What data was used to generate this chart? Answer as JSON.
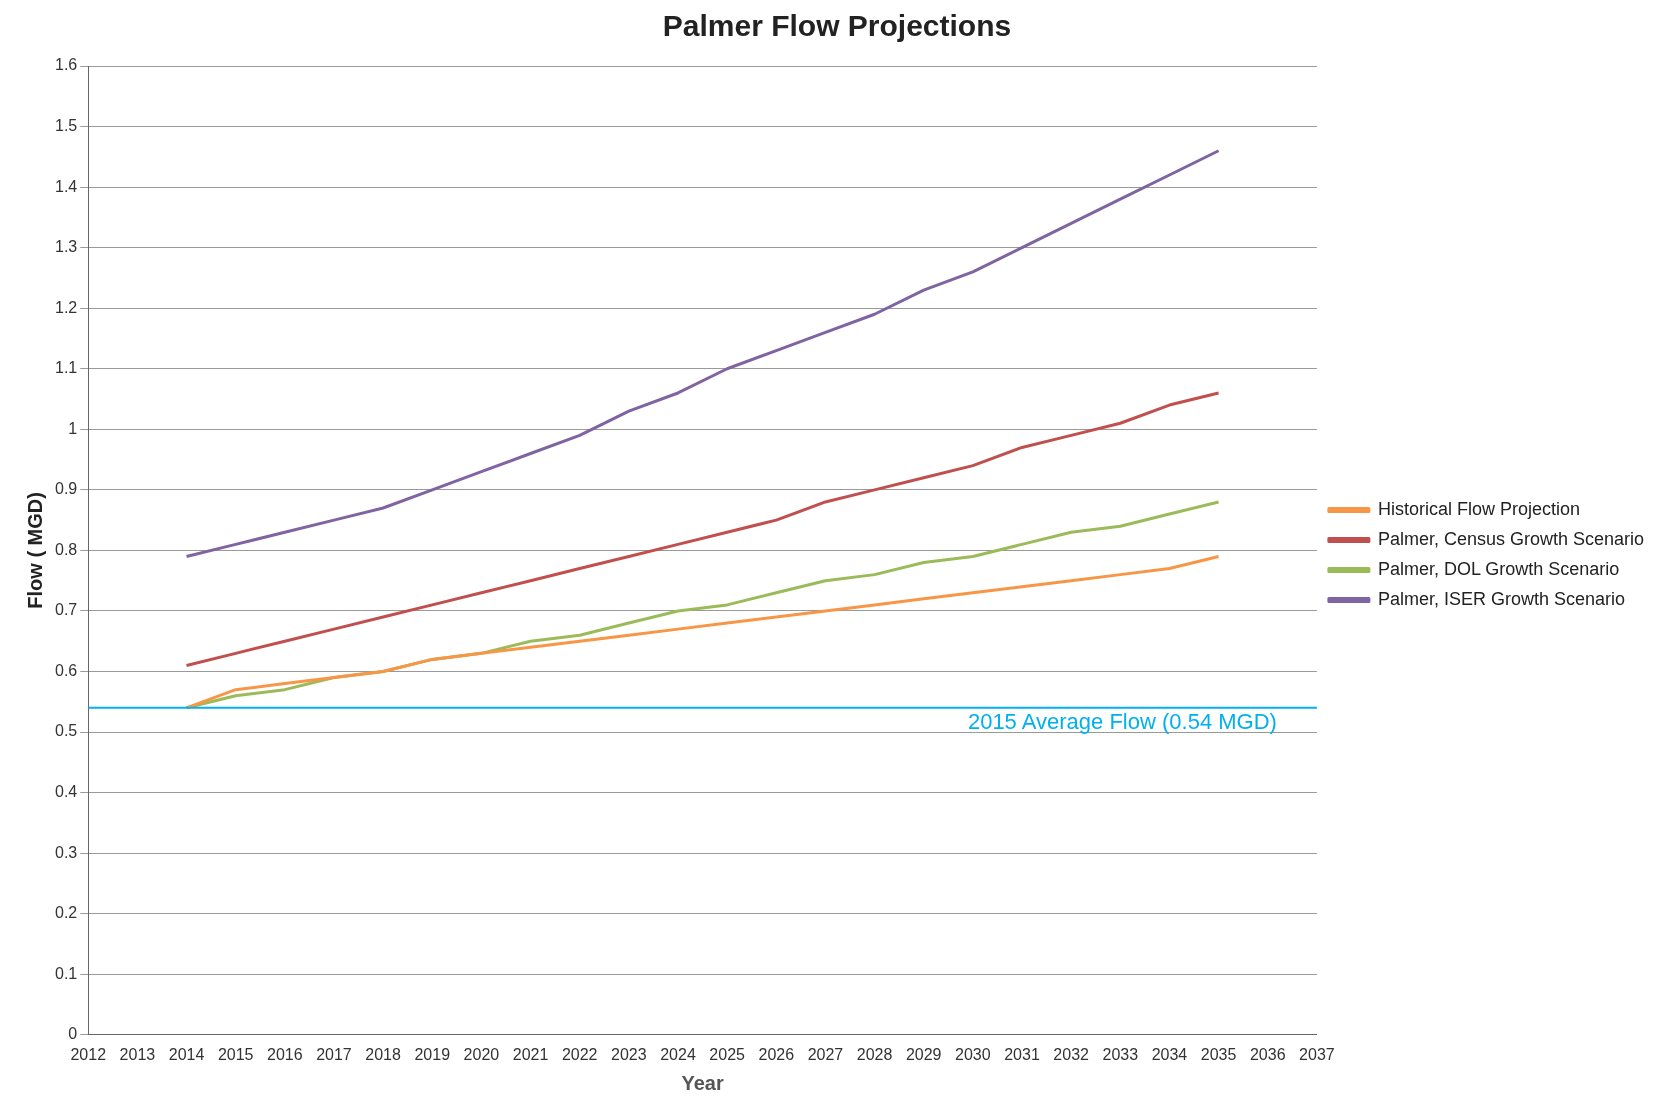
{
  "chart_data": {
    "type": "line",
    "title": "Palmer Flow Projections",
    "xlabel": "Year",
    "ylabel": "Flow ( MGD)",
    "x": [
      2014,
      2015,
      2016,
      2017,
      2018,
      2019,
      2020,
      2021,
      2022,
      2023,
      2024,
      2025,
      2026,
      2027,
      2028,
      2029,
      2030,
      2031,
      2032,
      2033,
      2034,
      2035
    ],
    "series": [
      {
        "name": "Historical Flow Projection",
        "color": "#f79646",
        "values": [
          0.54,
          0.57,
          0.58,
          0.59,
          0.6,
          0.62,
          0.63,
          0.64,
          0.65,
          0.66,
          0.67,
          0.68,
          0.69,
          0.7,
          0.71,
          0.72,
          0.73,
          0.74,
          0.75,
          0.76,
          0.77,
          0.79
        ]
      },
      {
        "name": "Palmer, Census Growth Scenario",
        "color": "#c0504d",
        "values": [
          0.61,
          0.63,
          0.65,
          0.67,
          0.69,
          0.71,
          0.73,
          0.75,
          0.77,
          0.79,
          0.81,
          0.83,
          0.85,
          0.88,
          0.9,
          0.92,
          0.94,
          0.97,
          0.99,
          1.01,
          1.04,
          1.06
        ]
      },
      {
        "name": "Palmer, DOL Growth Scenario",
        "color": "#9bbb59",
        "values": [
          0.54,
          0.56,
          0.57,
          0.59,
          0.6,
          0.62,
          0.63,
          0.65,
          0.66,
          0.68,
          0.7,
          0.71,
          0.73,
          0.75,
          0.76,
          0.78,
          0.79,
          0.81,
          0.83,
          0.84,
          0.86,
          0.88
        ]
      },
      {
        "name": "Palmer, ISER Growth Scenario",
        "color": "#8064a2",
        "values": [
          0.79,
          0.81,
          0.83,
          0.85,
          0.87,
          0.9,
          0.93,
          0.96,
          0.99,
          1.03,
          1.06,
          1.1,
          1.13,
          1.16,
          1.19,
          1.23,
          1.26,
          1.3,
          1.34,
          1.38,
          1.42,
          1.46
        ]
      }
    ],
    "xlim": [
      2012,
      2037
    ],
    "xticks": [
      2012,
      2013,
      2014,
      2015,
      2016,
      2017,
      2018,
      2019,
      2020,
      2021,
      2022,
      2023,
      2024,
      2025,
      2026,
      2027,
      2028,
      2029,
      2030,
      2031,
      2032,
      2033,
      2034,
      2035,
      2036,
      2037
    ],
    "ylim": [
      0,
      1.6
    ],
    "yticks": [
      0,
      0.1,
      0.2,
      0.3,
      0.4,
      0.5,
      0.6,
      0.7,
      0.8,
      0.9,
      1,
      1.1,
      1.2,
      1.3,
      1.4,
      1.5,
      1.6
    ],
    "ref_lines": [
      {
        "axis": "y",
        "value": 0.54,
        "label": "2015 Average Flow (0.54 MGD)",
        "color": "#00b0f0"
      }
    ],
    "grid": "y",
    "legend": "right",
    "marker": "none",
    "line_style": "solid"
  }
}
